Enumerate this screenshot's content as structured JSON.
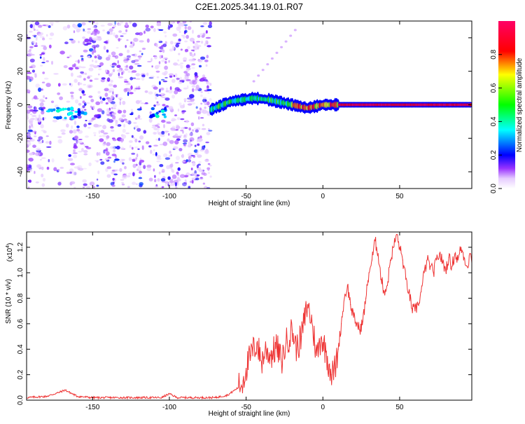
{
  "title": "C2E1.2025.341.19.01.R07",
  "chart_data": [
    {
      "type": "heatmap",
      "title": "C2E1.2025.341.19.01.R07",
      "xlabel": "Height of straight line (km)",
      "ylabel": "Frequency (Hz)",
      "xlim": [
        -193,
        97
      ],
      "ylim": [
        -50,
        50
      ],
      "xticks": [
        -150,
        -100,
        -50,
        0,
        50
      ],
      "yticks": [
        -40,
        -20,
        0,
        20,
        40
      ],
      "colorbar": {
        "label": "Normalized spectral amplitude",
        "range": [
          0.0,
          1.0
        ],
        "ticks": [
          "0.0",
          "0.2",
          "0.4",
          "0.6",
          "0.8"
        ],
        "tick_values": [
          0.0,
          0.2,
          0.4,
          0.6,
          0.8
        ]
      },
      "features": [
        {
          "name": "scattered-noise",
          "x_range": [
            -193,
            -73
          ],
          "y_range": [
            -50,
            50
          ],
          "amplitude": 0.2
        },
        {
          "name": "signal-band",
          "x_range": [
            -73,
            97
          ],
          "center_freq_hz": [
            [
              -73,
              -3
            ],
            [
              -60,
              2
            ],
            [
              -45,
              4
            ],
            [
              -35,
              3
            ],
            [
              -20,
              0
            ],
            [
              -10,
              -2
            ],
            [
              0,
              0
            ],
            [
              20,
              0
            ],
            [
              97,
              0
            ]
          ],
          "amplitude": [
            0.35,
            0.95
          ]
        }
      ]
    },
    {
      "type": "line",
      "xlabel": "Height of straight line (km)",
      "ylabel": "SNR (10 * v/v)",
      "y_exponent": "(x10",
      "y_exponent_power": "4",
      "y_exponent_close": ")",
      "xlim": [
        -193,
        97
      ],
      "ylim": [
        0.0,
        1.32
      ],
      "xticks": [
        -150,
        -100,
        -50,
        0,
        50
      ],
      "yticks": [
        "0.0",
        "0.2",
        "0.4",
        "0.6",
        "0.8",
        "1.0",
        "1.2"
      ],
      "ytick_values": [
        0.0,
        0.2,
        0.4,
        0.6,
        0.8,
        1.0,
        1.2
      ],
      "series": [
        {
          "name": "SNR",
          "color": "#ee3333",
          "x": [
            -193,
            -180,
            -172,
            -168,
            -160,
            -150,
            -130,
            -105,
            -100,
            -95,
            -80,
            -70,
            -62,
            -55,
            -52,
            -50,
            -47,
            -43,
            -40,
            -37,
            -34,
            -30,
            -27,
            -24,
            -20,
            -17,
            -14,
            -10,
            -7,
            -4,
            -1,
            2,
            4,
            6,
            8,
            10,
            12,
            14,
            16,
            18,
            20,
            22,
            24,
            26,
            28,
            30,
            32,
            34,
            36,
            38,
            40,
            42,
            44,
            46,
            48,
            50,
            52,
            54,
            56,
            58,
            60,
            62,
            64,
            66,
            68,
            70,
            72,
            74,
            76,
            78,
            80,
            82,
            84,
            86,
            88,
            90,
            92,
            94,
            96,
            97
          ],
          "values": [
            0.02,
            0.03,
            0.06,
            0.08,
            0.03,
            0.02,
            0.02,
            0.02,
            0.05,
            0.02,
            0.02,
            0.02,
            0.04,
            0.1,
            0.15,
            0.25,
            0.35,
            0.45,
            0.3,
            0.4,
            0.35,
            0.42,
            0.3,
            0.45,
            0.55,
            0.4,
            0.5,
            0.75,
            0.6,
            0.35,
            0.5,
            0.38,
            0.28,
            0.2,
            0.25,
            0.4,
            0.6,
            0.8,
            0.9,
            0.75,
            0.65,
            0.6,
            0.55,
            0.62,
            0.8,
            1.0,
            1.1,
            1.25,
            1.15,
            0.95,
            0.85,
            0.9,
            1.1,
            1.2,
            1.3,
            1.2,
            1.1,
            0.95,
            0.85,
            0.72,
            0.7,
            0.75,
            0.85,
            1.0,
            1.1,
            1.05,
            1.0,
            1.1,
            1.15,
            1.08,
            1.02,
            1.12,
            1.05,
            1.15,
            1.1,
            1.2,
            1.12,
            1.05,
            1.15,
            1.08
          ]
        }
      ]
    }
  ]
}
